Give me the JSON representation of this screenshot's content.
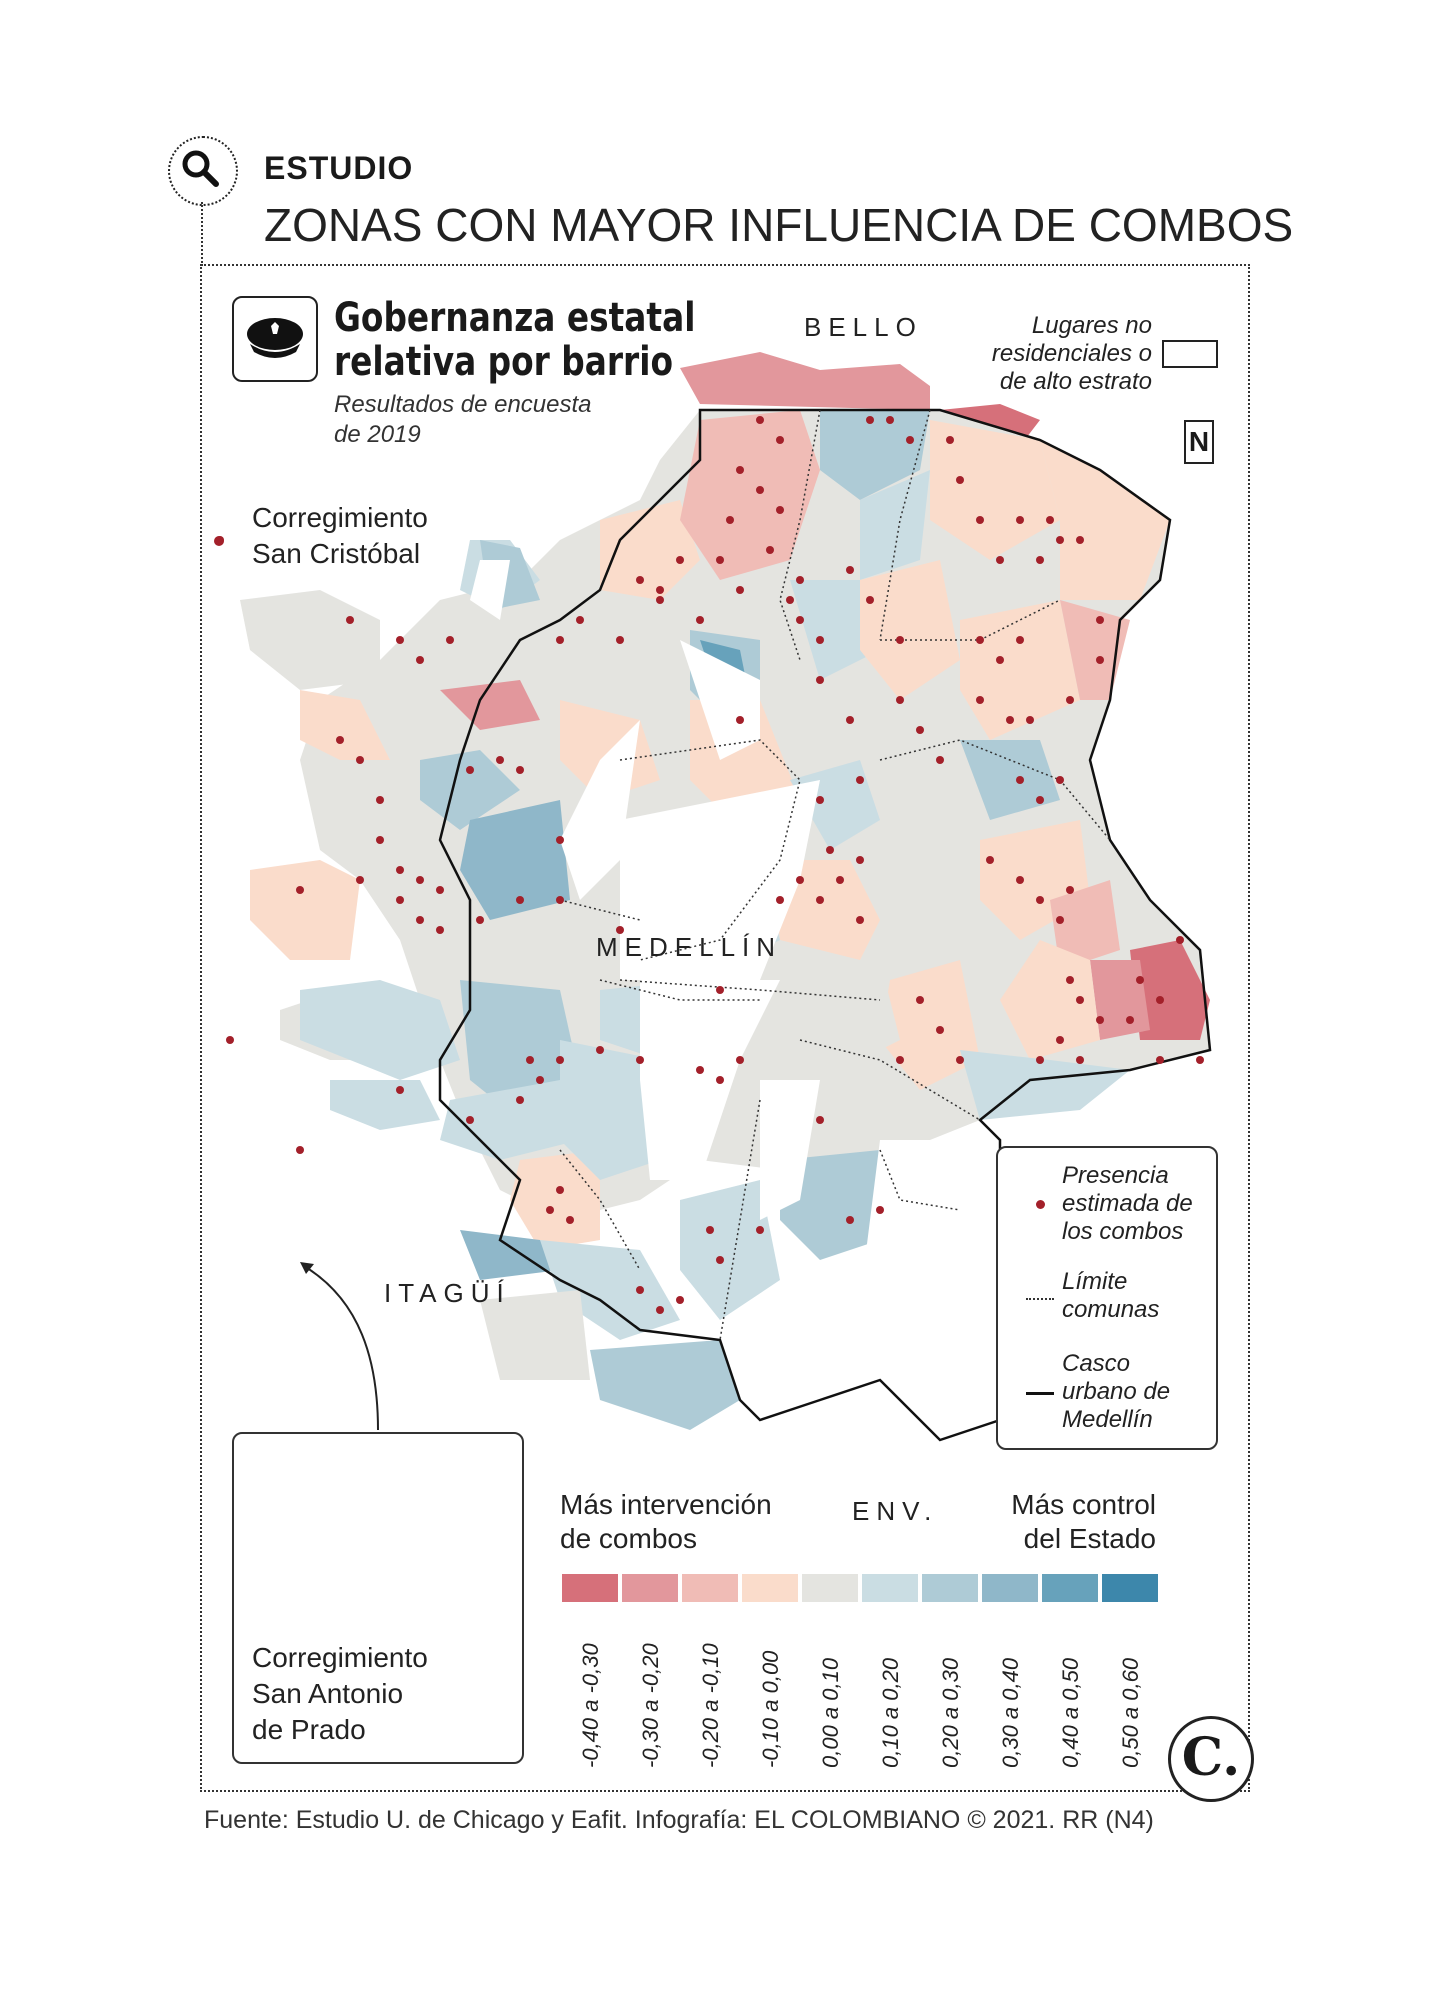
{
  "header": {
    "kicker": "ESTUDIO",
    "headline": "ZONAS CON MAYOR INFLUENCIA DE COMBOS",
    "icon": "search-icon"
  },
  "map": {
    "icon": "police-cap-icon",
    "title_line1": "Gobernanza estatal",
    "title_line2": "relativa por barrio",
    "subtitle_line1": "Resultados de encuesta",
    "subtitle_line2": "de 2019",
    "places": {
      "bello": "BELLO",
      "medellin": "MEDELLÍN",
      "itagui": "ITAGÜÍ",
      "envigado": "ENV.",
      "san_cristobal_line1": "Corregimiento",
      "san_cristobal_line2": "San Cristóbal",
      "san_antonio_line1": "Corregimiento",
      "san_antonio_line2": "San Antonio",
      "san_antonio_line3": "de Prado"
    },
    "north_symbol": "N"
  },
  "legend": {
    "non_residential_line1": "Lugares no",
    "non_residential_line2": "residenciales o",
    "non_residential_line3": "de alto estrato",
    "combos_line1": "Presencia",
    "combos_line2": "estimada de",
    "combos_line3": "los combos",
    "comunas_line1": "Límite",
    "comunas_line2": "comunas",
    "casco_line1": "Casco",
    "casco_line2": "urbano de",
    "casco_line3": "Medellín",
    "dot_color": "#a3202a"
  },
  "scale": {
    "left_line1": "Más intervención",
    "left_line2": "de combos",
    "right_line1": "Más control",
    "right_line2": "del Estado",
    "bins": [
      {
        "label": "-0,40 a -0,30",
        "color": "#d6707a"
      },
      {
        "label": "-0,30 a -0,20",
        "color": "#e2979c"
      },
      {
        "label": "-0,20 a -0,10",
        "color": "#f0bcb6"
      },
      {
        "label": "-0,10 a 0,00",
        "color": "#fadccb"
      },
      {
        "label": "0,00 a 0,10",
        "color": "#e4e4e0"
      },
      {
        "label": "0,10 a 0,20",
        "color": "#cadde3"
      },
      {
        "label": "0,20 a 0,30",
        "color": "#aecbd6"
      },
      {
        "label": "0,30 a 0,40",
        "color": "#8fb7c9"
      },
      {
        "label": "0,40 a 0,50",
        "color": "#67a2bb"
      },
      {
        "label": "0,50 a 0,60",
        "color": "#3d87ab"
      }
    ]
  },
  "footer": "Fuente: Estudio U. de Chicago y Eafit. Infografía: EL COLOMBIANO © 2021. RR (N4)",
  "brand": "C."
}
